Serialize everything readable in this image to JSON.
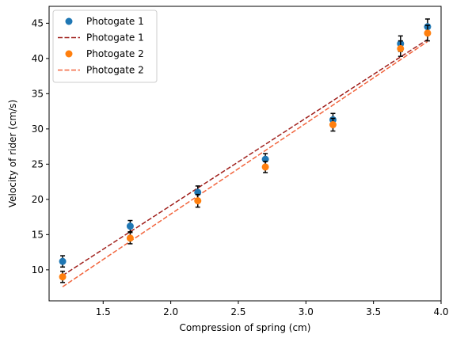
{
  "chart_data": {
    "type": "scatter",
    "xlabel": "Compression of spring (cm)",
    "ylabel": "Velocity of rider (cm/s)",
    "xlim": [
      1.1,
      4.0
    ],
    "ylim": [
      5.6,
      47.4
    ],
    "xticks": [
      1.5,
      2.0,
      2.5,
      3.0,
      3.5,
      4.0
    ],
    "xtick_labels": [
      "1.5",
      "2.0",
      "2.5",
      "3.0",
      "3.5",
      "4.0"
    ],
    "yticks": [
      10,
      15,
      20,
      25,
      30,
      35,
      40,
      45
    ],
    "ytick_labels": [
      "10",
      "15",
      "20",
      "25",
      "30",
      "35",
      "40",
      "45"
    ],
    "grid": false,
    "legend_position": "top-left",
    "series": [
      {
        "name": "Photogate 1",
        "kind": "scatter",
        "color": "#1f77b4",
        "x": [
          1.2,
          1.7,
          2.2,
          2.7,
          3.2,
          3.7,
          3.9
        ],
        "y": [
          11.2,
          16.2,
          21.0,
          25.7,
          31.3,
          42.1,
          44.5
        ],
        "yerr": [
          0.8,
          0.8,
          0.9,
          0.8,
          0.9,
          1.1,
          1.1
        ]
      },
      {
        "name": "Photogate 1",
        "kind": "fit-line",
        "color": "#a0201c",
        "x": [
          1.2,
          3.9
        ],
        "y": [
          9.2,
          42.7
        ]
      },
      {
        "name": "Photogate 2",
        "kind": "scatter",
        "color": "#ff7f0e",
        "x": [
          1.2,
          1.7,
          2.2,
          2.7,
          3.2,
          3.7,
          3.9
        ],
        "y": [
          9.0,
          14.5,
          19.8,
          24.6,
          30.6,
          41.4,
          43.6
        ],
        "yerr": [
          0.8,
          0.8,
          0.9,
          0.8,
          0.9,
          1.1,
          1.1
        ]
      },
      {
        "name": "Photogate 2",
        "kind": "fit-line",
        "color": "#f2643c",
        "x": [
          1.2,
          3.9
        ],
        "y": [
          7.6,
          42.4
        ]
      }
    ]
  }
}
